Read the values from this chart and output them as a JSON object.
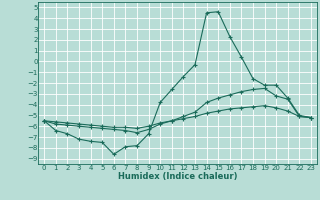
{
  "xlabel": "Humidex (Indice chaleur)",
  "xlim": [
    -0.5,
    23.5
  ],
  "ylim": [
    -9.5,
    5.5
  ],
  "xticks": [
    0,
    1,
    2,
    3,
    4,
    5,
    6,
    7,
    8,
    9,
    10,
    11,
    12,
    13,
    14,
    15,
    16,
    17,
    18,
    19,
    20,
    21,
    22,
    23
  ],
  "yticks": [
    5,
    4,
    3,
    2,
    1,
    0,
    -1,
    -2,
    -3,
    -4,
    -5,
    -6,
    -7,
    -8,
    -9
  ],
  "bg_color": "#b8ddd6",
  "line_color": "#1a6b5a",
  "grid_color": "#ffffff",
  "curve1_x": [
    0,
    1,
    2,
    3,
    4,
    5,
    6,
    7,
    8,
    9,
    10,
    11,
    12,
    13,
    14,
    15,
    16,
    17,
    18,
    19,
    20,
    21,
    22,
    23
  ],
  "curve1_y": [
    -5.5,
    -6.4,
    -6.7,
    -7.2,
    -7.4,
    -7.5,
    -8.6,
    -7.9,
    -7.8,
    -6.7,
    -3.8,
    -2.6,
    -1.4,
    -0.3,
    4.5,
    4.6,
    2.3,
    0.4,
    -1.6,
    -2.2,
    -2.2,
    -3.4,
    -5.0,
    -5.2
  ],
  "curve2_x": [
    0,
    1,
    2,
    3,
    4,
    5,
    6,
    7,
    8,
    9,
    10,
    11,
    12,
    13,
    14,
    15,
    16,
    17,
    18,
    19,
    20,
    21,
    22,
    23
  ],
  "curve2_y": [
    -5.5,
    -5.8,
    -5.9,
    -6.0,
    -6.1,
    -6.2,
    -6.3,
    -6.4,
    -6.6,
    -6.3,
    -5.8,
    -5.5,
    -5.1,
    -4.7,
    -3.8,
    -3.4,
    -3.1,
    -2.8,
    -2.6,
    -2.5,
    -3.2,
    -3.5,
    -5.1,
    -5.2
  ],
  "curve3_x": [
    0,
    1,
    2,
    3,
    4,
    5,
    6,
    7,
    8,
    9,
    10,
    11,
    12,
    13,
    14,
    15,
    16,
    17,
    18,
    19,
    20,
    21,
    22,
    23
  ],
  "curve3_y": [
    -5.5,
    -5.6,
    -5.7,
    -5.8,
    -5.9,
    -6.0,
    -6.1,
    -6.1,
    -6.2,
    -6.0,
    -5.7,
    -5.5,
    -5.3,
    -5.1,
    -4.8,
    -4.6,
    -4.4,
    -4.3,
    -4.2,
    -4.1,
    -4.3,
    -4.6,
    -5.1,
    -5.2
  ]
}
